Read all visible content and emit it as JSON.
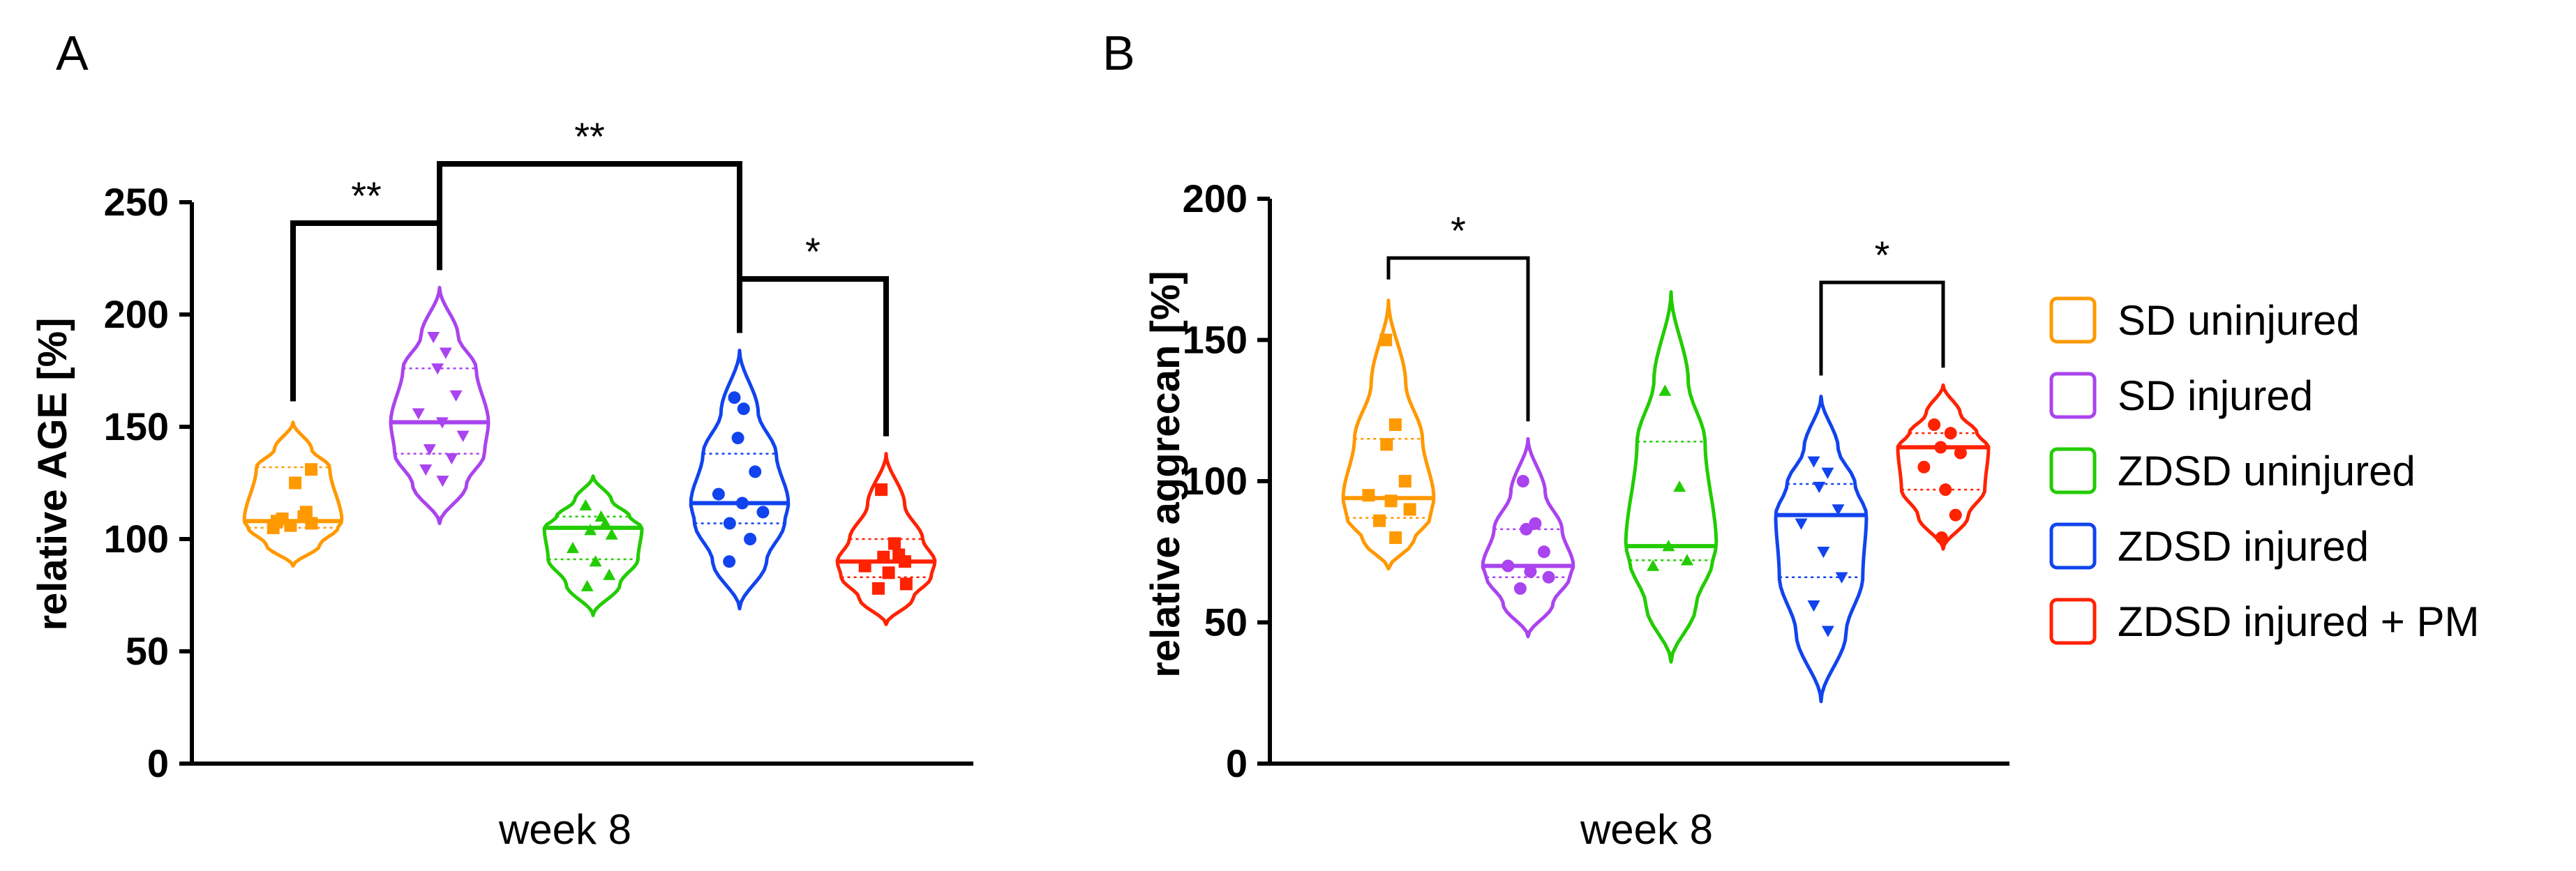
{
  "chart_data": [
    {
      "panel": "A",
      "type": "violin",
      "title": "",
      "xlabel": "week 8",
      "ylabel": "relative AGE [%]",
      "ylim": [
        0,
        250
      ],
      "yticks": [
        0,
        50,
        100,
        150,
        200,
        250
      ],
      "series": [
        {
          "name": "SD uninjured",
          "color": "#ff9900",
          "marker": "square",
          "min": 88,
          "max": 152,
          "median": 108,
          "q1": 105,
          "q3": 132,
          "points": [
            108,
            110,
            106,
            107,
            105,
            125,
            131,
            109,
            112
          ]
        },
        {
          "name": "SD injured",
          "color": "#aa44ee",
          "marker": "triangle-down",
          "min": 107,
          "max": 212,
          "median": 152,
          "q1": 138,
          "q3": 176,
          "points": [
            190,
            183,
            176,
            164,
            156,
            152,
            146,
            140,
            136,
            131,
            126
          ]
        },
        {
          "name": "ZDSD uninjured",
          "color": "#22cc00",
          "marker": "triangle-up",
          "min": 66,
          "max": 128,
          "median": 105,
          "q1": 91,
          "q3": 110,
          "points": [
            115,
            110,
            104,
            102,
            96,
            90,
            84,
            79,
            107
          ]
        },
        {
          "name": "ZDSD injured",
          "color": "#1144ee",
          "marker": "circle",
          "min": 69,
          "max": 184,
          "median": 116,
          "q1": 107,
          "q3": 138,
          "points": [
            163,
            158,
            145,
            130,
            120,
            116,
            112,
            107,
            100,
            90
          ]
        },
        {
          "name": "ZDSD injured + PM",
          "color": "#ff2200",
          "marker": "square",
          "min": 62,
          "max": 138,
          "median": 90,
          "q1": 83,
          "q3": 100,
          "points": [
            122,
            98,
            92,
            90,
            88,
            85,
            80,
            78,
            93
          ]
        }
      ],
      "significance": [
        {
          "from": 0,
          "to": 1,
          "label": "**"
        },
        {
          "from": 1,
          "to": 3,
          "label": "**"
        },
        {
          "from": 3,
          "to": 4,
          "label": "*"
        }
      ]
    },
    {
      "panel": "B",
      "type": "violin",
      "title": "",
      "xlabel": "week 8",
      "ylabel": "relative aggrecan [%]",
      "ylim": [
        0,
        200
      ],
      "yticks": [
        0,
        50,
        100,
        150,
        200
      ],
      "series": [
        {
          "name": "SD uninjured",
          "color": "#ff9900",
          "marker": "square",
          "min": 69,
          "max": 164,
          "median": 94,
          "q1": 87,
          "q3": 115,
          "points": [
            150,
            120,
            113,
            100,
            95,
            93,
            90,
            86,
            80
          ]
        },
        {
          "name": "SD injured",
          "color": "#aa44ee",
          "marker": "circle",
          "min": 45,
          "max": 115,
          "median": 70,
          "q1": 66,
          "q3": 83,
          "points": [
            100,
            85,
            83,
            75,
            70,
            68,
            66,
            62
          ]
        },
        {
          "name": "ZDSD uninjured",
          "color": "#22cc00",
          "marker": "triangle-up",
          "min": 36,
          "max": 167,
          "median": 77,
          "q1": 72,
          "q3": 114,
          "points": [
            132,
            98,
            77,
            72,
            70
          ]
        },
        {
          "name": "ZDSD injured",
          "color": "#1144ee",
          "marker": "triangle-down",
          "min": 22,
          "max": 130,
          "median": 88,
          "q1": 66,
          "q3": 99,
          "points": [
            107,
            103,
            98,
            90,
            85,
            75,
            66,
            56,
            47
          ]
        },
        {
          "name": "ZDSD injured + PM",
          "color": "#ff2200",
          "marker": "circle",
          "min": 76,
          "max": 134,
          "median": 112,
          "q1": 97,
          "q3": 117,
          "points": [
            120,
            117,
            112,
            110,
            105,
            97,
            88,
            80
          ]
        }
      ],
      "significance": [
        {
          "from": 0,
          "to": 1,
          "label": "*"
        },
        {
          "from": 3,
          "to": 4,
          "label": "*"
        }
      ]
    }
  ],
  "legend": {
    "items": [
      {
        "label": "SD uninjured",
        "color": "#ff9900"
      },
      {
        "label": "SD injured",
        "color": "#aa44ee"
      },
      {
        "label": "ZDSD uninjured",
        "color": "#22cc00"
      },
      {
        "label": "ZDSD injured",
        "color": "#1144ee"
      },
      {
        "label": "ZDSD injured + PM",
        "color": "#ff2200"
      }
    ]
  }
}
